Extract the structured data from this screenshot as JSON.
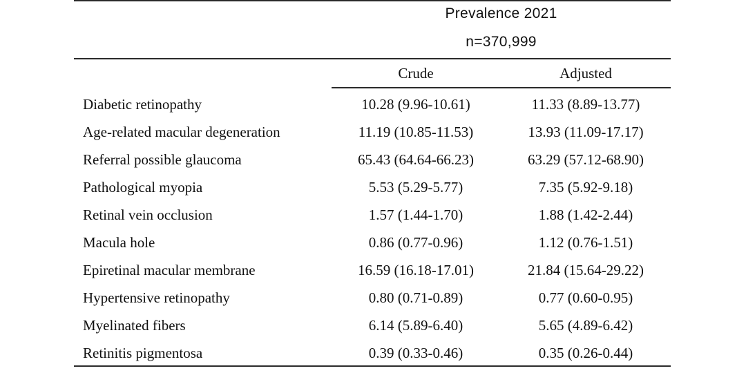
{
  "header": {
    "title": "Prevalence 2021",
    "n": "n=370,999"
  },
  "columns": {
    "crude": "Crude",
    "adjusted": "Adjusted"
  },
  "rows": [
    {
      "label": "Diabetic retinopathy",
      "crude": "10.28 (9.96-10.61)",
      "adjusted": "11.33 (8.89-13.77)"
    },
    {
      "label": "Age-related macular degeneration",
      "crude": "11.19 (10.85-11.53)",
      "adjusted": "13.93 (11.09-17.17)"
    },
    {
      "label": "Referral possible glaucoma",
      "crude": "65.43 (64.64-66.23)",
      "adjusted": "63.29 (57.12-68.90)"
    },
    {
      "label": "Pathological myopia",
      "crude": "5.53 (5.29-5.77)",
      "adjusted": "7.35 (5.92-9.18)"
    },
    {
      "label": "Retinal vein occlusion",
      "crude": "1.57 (1.44-1.70)",
      "adjusted": "1.88 (1.42-2.44)"
    },
    {
      "label": "Macula hole",
      "crude": "0.86 (0.77-0.96)",
      "adjusted": "1.12 (0.76-1.51)"
    },
    {
      "label": "Epiretinal macular membrane",
      "crude": "16.59 (16.18-17.01)",
      "adjusted": "21.84 (15.64-29.22)"
    },
    {
      "label": "Hypertensive retinopathy",
      "crude": "0.80 (0.71-0.89)",
      "adjusted": "0.77 (0.60-0.95)"
    },
    {
      "label": "Myelinated fibers",
      "crude": "6.14 (5.89-6.40)",
      "adjusted": "5.65 (4.89-6.42)"
    },
    {
      "label": "Retinitis pigmentosa",
      "crude": "0.39 (0.33-0.46)",
      "adjusted": "0.35 (0.26-0.44)"
    }
  ]
}
